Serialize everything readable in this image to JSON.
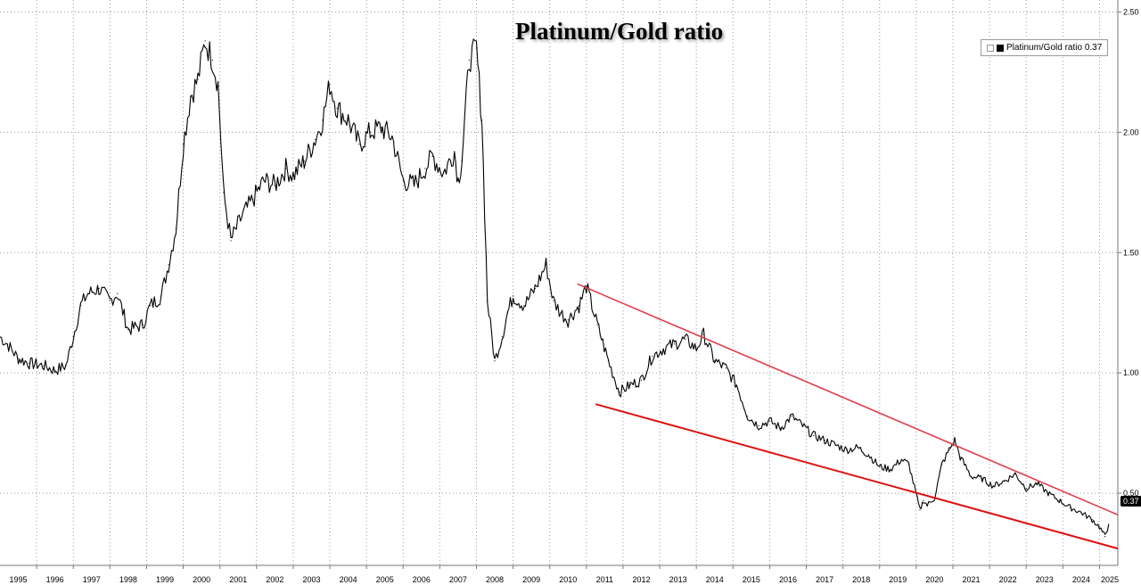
{
  "chart_data": {
    "type": "line",
    "title": "Platinum/Gold ratio",
    "xlabel": "",
    "ylabel": "",
    "xlim": [
      1995.0,
      2025.5
    ],
    "ylim": [
      0.2,
      2.55
    ],
    "y_ticks": [
      "0.50",
      "1.00",
      "1.50",
      "2.00",
      "2.50"
    ],
    "x_ticks": [
      "1995",
      "1996",
      "1997",
      "1998",
      "1999",
      "2000",
      "2001",
      "2002",
      "2003",
      "2004",
      "2005",
      "2006",
      "2007",
      "2008",
      "2009",
      "2010",
      "2011",
      "2012",
      "2013",
      "2014",
      "2015",
      "2016",
      "2017",
      "2018",
      "2019",
      "2020",
      "2021",
      "2022",
      "2023",
      "2024",
      "2025"
    ],
    "grid": true,
    "legend": {
      "position": "top-right",
      "label": "Platinum/Gold ratio 0.37"
    },
    "last_value_label": "0.37",
    "series": [
      {
        "name": "Platinum/Gold ratio",
        "color": "#000000",
        "x": [
          1995.0,
          1995.2,
          1995.5,
          1995.8,
          1996.2,
          1996.5,
          1996.8,
          1997.0,
          1997.2,
          1997.4,
          1997.7,
          1998.0,
          1998.2,
          1998.5,
          1998.9,
          1999.1,
          1999.4,
          1999.6,
          1999.8,
          2000.0,
          2000.2,
          2000.4,
          2000.6,
          2000.8,
          2000.95,
          2001.1,
          2001.3,
          2001.6,
          2001.9,
          2002.2,
          2002.5,
          2002.8,
          2003.0,
          2003.3,
          2003.6,
          2003.8,
          2004.0,
          2004.2,
          2004.5,
          2004.8,
          2005.1,
          2005.4,
          2005.7,
          2006.0,
          2006.3,
          2006.6,
          2006.8,
          2007.1,
          2007.4,
          2007.5,
          2007.6,
          2007.8,
          2008.0,
          2008.15,
          2008.3,
          2008.5,
          2008.7,
          2008.85,
          2009.0,
          2009.3,
          2009.6,
          2009.9,
          2010.1,
          2010.3,
          2010.5,
          2010.8,
          2011.0,
          2011.3,
          2011.6,
          2011.9,
          2012.2,
          2012.5,
          2012.8,
          2013.1,
          2013.4,
          2013.7,
          2014.0,
          2014.2,
          2014.5,
          2014.8,
          2015.1,
          2015.4,
          2015.7,
          2016.0,
          2016.3,
          2016.6,
          2016.9,
          2017.2,
          2017.5,
          2017.8,
          2018.1,
          2018.4,
          2018.7,
          2019.0,
          2019.3,
          2019.6,
          2019.8,
          2020.1,
          2020.2,
          2020.3,
          2020.5,
          2020.7,
          2020.9,
          2021.05,
          2021.2,
          2021.5,
          2021.8,
          2022.1,
          2022.4,
          2022.7,
          2023.0,
          2023.3,
          2023.6,
          2023.9,
          2024.2,
          2024.5,
          2024.8,
          2025.0,
          2025.15,
          2025.25
        ],
        "y": [
          1.15,
          1.12,
          1.06,
          1.04,
          1.03,
          1.01,
          1.03,
          1.15,
          1.28,
          1.33,
          1.35,
          1.3,
          1.33,
          1.18,
          1.2,
          1.28,
          1.32,
          1.45,
          1.6,
          1.95,
          2.15,
          2.22,
          2.38,
          2.3,
          2.2,
          1.75,
          1.55,
          1.65,
          1.72,
          1.8,
          1.78,
          1.85,
          1.82,
          1.88,
          1.97,
          2.05,
          2.2,
          2.1,
          2.05,
          1.95,
          2.0,
          2.02,
          1.98,
          1.8,
          1.78,
          1.85,
          1.9,
          1.83,
          1.92,
          1.8,
          1.88,
          2.3,
          2.35,
          2.05,
          1.3,
          1.05,
          1.15,
          1.25,
          1.32,
          1.28,
          1.35,
          1.45,
          1.3,
          1.25,
          1.22,
          1.28,
          1.36,
          1.2,
          1.05,
          0.92,
          0.95,
          0.97,
          1.07,
          1.1,
          1.12,
          1.14,
          1.1,
          1.16,
          1.05,
          1.02,
          0.95,
          0.82,
          0.78,
          0.8,
          0.77,
          0.82,
          0.78,
          0.74,
          0.72,
          0.7,
          0.68,
          0.69,
          0.66,
          0.61,
          0.6,
          0.64,
          0.62,
          0.43,
          0.47,
          0.45,
          0.48,
          0.62,
          0.68,
          0.72,
          0.65,
          0.57,
          0.56,
          0.53,
          0.55,
          0.58,
          0.52,
          0.54,
          0.5,
          0.47,
          0.44,
          0.42,
          0.39,
          0.36,
          0.32,
          0.37
        ]
      },
      {
        "name": "",
        "color": "#e03c4a",
        "x": [
          2010.75,
          2025.5
        ],
        "y": [
          1.37,
          0.41
        ]
      },
      {
        "name": "",
        "color": "#dd1111",
        "x": [
          2011.25,
          2025.5
        ],
        "y": [
          0.87,
          0.27
        ]
      }
    ]
  }
}
